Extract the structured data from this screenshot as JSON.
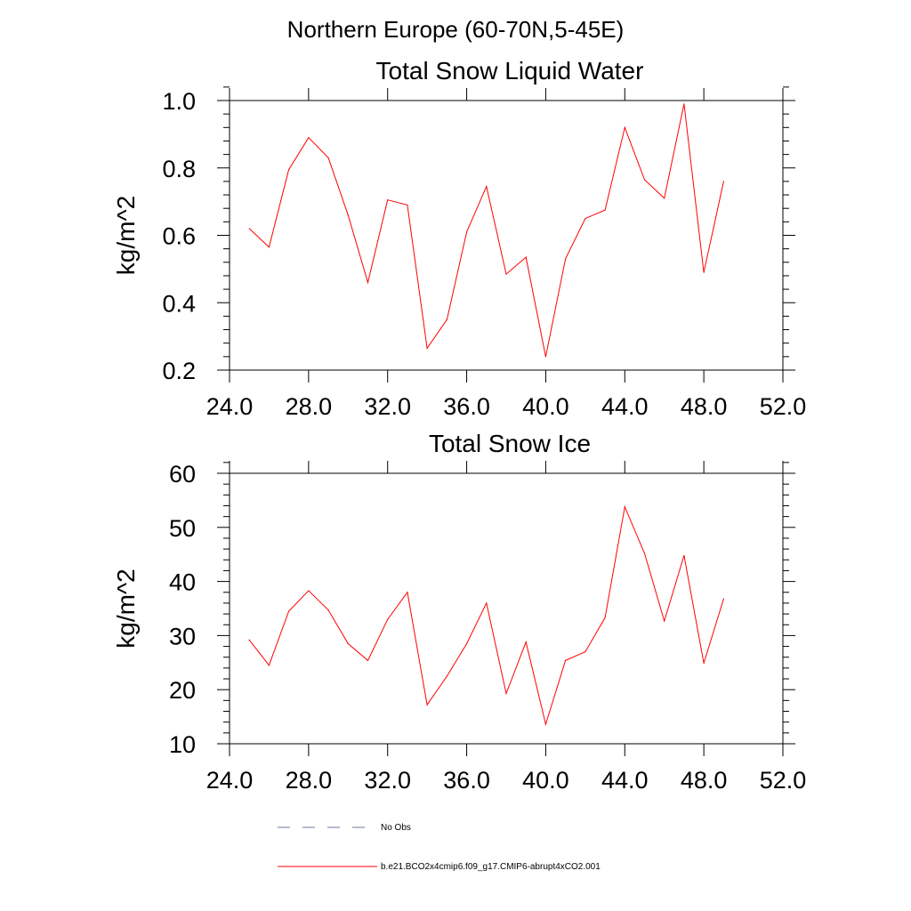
{
  "suptitle": "Northern Europe (60-70N,5-45E)",
  "colors": {
    "model": "#ff0000",
    "obs": "#6b7aa1",
    "axis": "#000000"
  },
  "legend": {
    "obs_label": "No Obs",
    "model_label": "b.e21.BCO2x4cmip6.f09_g17.CMIP6-abrupt4xCO2.001"
  },
  "chart_data": [
    {
      "type": "line",
      "title": "Total Snow Liquid Water",
      "xlabel": "",
      "ylabel": "kg/m^2",
      "xlim": [
        24,
        52
      ],
      "ylim": [
        0.2,
        1.0
      ],
      "xticks": [
        24,
        28,
        32,
        36,
        40,
        44,
        48,
        52
      ],
      "xtick_labels": [
        "24.0",
        "28.0",
        "32.0",
        "36.0",
        "40.0",
        "44.0",
        "48.0",
        "52.0"
      ],
      "yticks": [
        0.2,
        0.4,
        0.6,
        0.8,
        1.0
      ],
      "ytick_labels": [
        "0.2",
        "0.4",
        "0.6",
        "0.8",
        "1.0"
      ],
      "series": [
        {
          "name": "b.e21.BCO2x4cmip6.f09_g17.CMIP6-abrupt4xCO2.001",
          "x": [
            25,
            26,
            27,
            28,
            29,
            30,
            31,
            32,
            33,
            34,
            35,
            36,
            37,
            38,
            39,
            40,
            41,
            42,
            43,
            44,
            45,
            46,
            47,
            48,
            49
          ],
          "values": [
            0.62,
            0.565,
            0.795,
            0.89,
            0.83,
            0.66,
            0.46,
            0.705,
            0.69,
            0.265,
            0.35,
            0.61,
            0.745,
            0.485,
            0.535,
            0.24,
            0.53,
            0.65,
            0.675,
            0.92,
            0.765,
            0.71,
            0.99,
            0.49,
            0.76
          ]
        }
      ]
    },
    {
      "type": "line",
      "title": "Total Snow Ice",
      "xlabel": "",
      "ylabel": "kg/m^2",
      "xlim": [
        24,
        52
      ],
      "ylim": [
        10,
        60
      ],
      "xticks": [
        24,
        28,
        32,
        36,
        40,
        44,
        48,
        52
      ],
      "xtick_labels": [
        "24.0",
        "28.0",
        "32.0",
        "36.0",
        "40.0",
        "44.0",
        "48.0",
        "52.0"
      ],
      "yticks": [
        10,
        20,
        30,
        40,
        50,
        60
      ],
      "ytick_labels": [
        "10",
        "20",
        "30",
        "40",
        "50",
        "60"
      ],
      "series": [
        {
          "name": "b.e21.BCO2x4cmip6.f09_g17.CMIP6-abrupt4xCO2.001",
          "x": [
            25,
            26,
            27,
            28,
            29,
            30,
            31,
            32,
            33,
            34,
            35,
            36,
            37,
            38,
            39,
            40,
            41,
            42,
            43,
            44,
            45,
            46,
            47,
            48,
            49
          ],
          "values": [
            29.2,
            24.5,
            34.5,
            38.3,
            34.7,
            28.5,
            25.4,
            33,
            38,
            17.2,
            22.5,
            28.5,
            36,
            19.3,
            28.8,
            13.6,
            25.4,
            27,
            33.3,
            53.8,
            45.2,
            32.7,
            44.8,
            24.9,
            36.8
          ]
        }
      ]
    }
  ]
}
